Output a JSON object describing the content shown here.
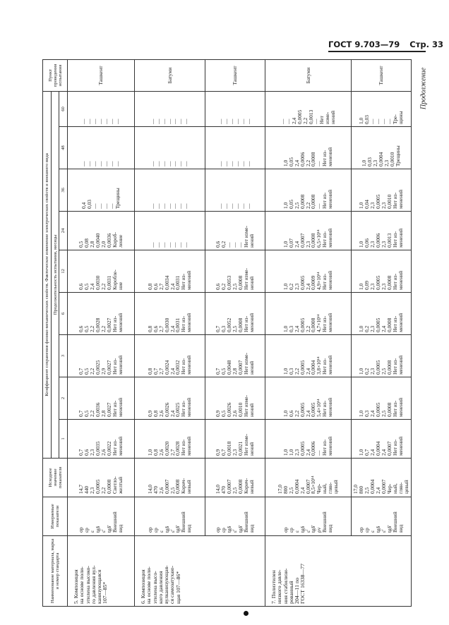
{
  "page_header": {
    "standard": "ГОСТ 9.703—79",
    "page": "Стр. 33"
  },
  "continuation": "Продолжение",
  "table_header": {
    "name": "Наименование материала, марка и номер стандарта",
    "params": "Измеряемые показатели",
    "initial": "Исходное значение показателя",
    "group": "Коэффициент сохранения физико-механических свойств. Фактическое изменение электрических свойств и внешнего вида",
    "duration": "Продолжительность испытания, месяцы",
    "months": [
      "1",
      "2",
      "3",
      "6",
      "12",
      "24",
      "36",
      "48",
      "60"
    ],
    "place": "Пункт проведения испытания"
  },
  "materials": [
    {
      "name": "5. Композиция\nна основе поли-\nэтилена высоко-\nго давления вул-\nканизующаяся\n107—85*",
      "rows": [
        {
          "params": "σр\nεр\nε\ntgδ\nε'\ntgδ'\nВнешний\nвид",
          "initial": "14,7\n440\n2,3\n0,0005\n2,2\n0,0008\nСветло-\nжелтый",
          "months": [
            "0,7\n0,6\n2,3\n0,0035\n2,6\n0,0022\nНет из-\nменений",
            "0,7\n0,5\n2,2\n0,0036\n2,8\n0,0027\nНет из-\nменений",
            "0,7\n0,5\n2,2\n0,0025\n2,9\n0,0027\nНет из-\nменений",
            "0,6\n0,5\n2,2\n0,0028\n2,2\n0,0027\nНет из-\nменений",
            "0,6\n0,5\n2,4\n0,0030\n2,2\n0,0031\nКоробле-\nние",
            "0,5\n0,08\n2,8\n0,0040\n2,0\n0,0036\nКороб-\nление",
            "0,4\n0,03\n—\n—\n—\n—\nТрещины",
            "—\n—\n—\n—\n—\n—\n—",
            "—\n—\n—\n—\n—\n—\n—"
          ],
          "place": "Ташкент"
        }
      ]
    },
    {
      "name": "6. Композиция\nна основе поли-\nэтилена высо-\nкого давления\nвулканизующая-\nся самозатухаю-\nщая 107—86*",
      "rows": [
        {
          "params": "σр\nεр\nε\ntgδ\nε'\ntgδ'\nВнешний\nвид",
          "initial": "14,0\n470\n2,6\n0,0007\n2,5\n0,0008\nКорич-\nневый",
          "months": [
            "1,0\n0,8\n2,6\n0,0020\n2,7\n0,0028\nНет из-\nменений",
            "0,9\n0,8\n2,6\n0,0026\n2,4\n0,0025\nНет из-\nменений",
            "0,8\n0,7\n2,7\n0,0024\n2,4\n0,0032\nНет из-\nменений",
            "0,8\n0,6\n2,7\n0,0030\n2,4\n0,0031\nНет из-\nменений",
            "0,8\n0,6\n2,7\n0,0034\n2,4\n0,0031\nНет из-\nменений",
            "—\n—\n—\n—\n—\n—\n—",
            "—\n—\n—\n—\n—\n—\n—",
            "—\n—\n—\n—\n—\n—\n—",
            "—\n—\n—\n—\n—\n—\n—"
          ],
          "place": "Батуми"
        },
        {
          "params": "σр\nεр\ntgδ\nε'\ntgδ'\nВнешний\nвид",
          "initial": "14,0\n470\n0,0007\n2,5\n0,0008\nКорич-\nневый",
          "months": [
            "0,9\n0,7\n0,0018\n2,3\n0,0021\nНет изме-\nнений",
            "0,9\n0,5\n0,0026\n2,6\n0,0010\nНет изме-\nнений",
            "0,7\n0,5\n0,0048\n2,8\n0,0007\nНет изме-\nнений",
            "0,7\n0,3\n0,0052\n2,5\n0,0008\nНет из-\nменений",
            "0,6\n0,2\n0,0053\n2,5\n0,0008\nНет изме-\nнений",
            "0,6\n0,2\n—\n—\n—\nНет изме-\nнений",
            "—\n—\n—\n—\n—\n—",
            "—\n—\n—\n—\n—\n—",
            "—\n—\n—\n—\n—\n—"
          ],
          "place": "Ташкент"
        }
      ]
    },
    {
      "name": "7. Полиэтилен\nнизкого давле-\nния стабилизи-\nрованный\n204—11 по\nГОСТ 16338—77",
      "rows": [
        {
          "params": "σр\nεр\nε\ntgδ\nε'\ntgδ'\nρv\nВнешний\nвид",
          "initial": "17,0\n800\n2,5\n0,0004\n2,4\n0,0007\n8,5×10¹⁴\nЧер-\nный,\nглян-\nцевый",
          "months": [
            "1,0\n1,0\n2,3\n0,0005\n2,4\n0,0006\n—\nНет из-\nменений",
            "1,0\n0,6\n2,2\n0,0005\n2,4\n0,0005\n5,4×10¹⁴\nНет из-\nменений",
            "1,0\n0,3\n2,2\n0,0005\n2,4\n0,0004\n3,8×10¹⁴\nНет из-\nменений",
            "1,0\n0,3\n2,4\n0,0005\n2,2\n0,0008\n4,7×10¹⁴\nНет из-\nменений",
            "1,0\n0,2\n2,3\n0,0005\n2,4\n0,0009\n4,9×10¹⁴\nНет из-\nменений",
            "1,0\n0,07\n2,4\n0,0007\n2,3\n0,0008\n6,5×10¹⁴\nНет из-\nменений",
            "1,0\n0,05\n2,5\n0,0008\n2,2\n0,0008\n—\nНет из-\nменений",
            "1,0\n0,05\n2,4\n0,0006\n2,2\n0,0008\n—\nНет из-\nменений",
            "—\n—\n2,4\n0,0005\n2,2\n0,0013\n—\nНет\nизме-\nнений"
          ],
          "place": "Батуми"
        },
        {
          "params": "σр\nεр\nε\ntgδ\nε'\ntgδ'\nВнешний\nвид",
          "initial": "17,0\n800\n2,5\n0,0004\n2,4\n0,0007\nЧер-\nный,\nглян-\nцевый",
          "months": [
            "1,0\n0,7\n2,4\n0,0004\n2,4\n0,0007\nНет из-\nменений",
            "1,0\n0,3\n2,4\n0,0005\n2,5\n0,0008\nНет из-\nменений",
            "1,0\n0,2\n2,3\n0,0005\n2,5\n0,0008\nНет из-\nменений",
            "1,0\n0,2\n2,3\n0,0005\n2,4\n0,0008\nНет из-\nменений",
            "1,0\n0,09\n2,3\n0,0005\n2,3\n0,0008\nНет из-\nменений",
            "1,0\n0,06\n2,3\n0,0006\n2,3\n0,0013\nНет из-\nменений",
            "1,0\n0,04\n2,3\n0,0005\n2,3\n0,0010\nНет из-\nменений",
            "1,0\n0,03\n2,3\n0,0004\n2,3\n0,0010\nТрещины",
            "1,0\n0,03\n—\n—\n—\n—\nТре-\nщины"
          ],
          "place": "Ташкент"
        }
      ]
    }
  ]
}
